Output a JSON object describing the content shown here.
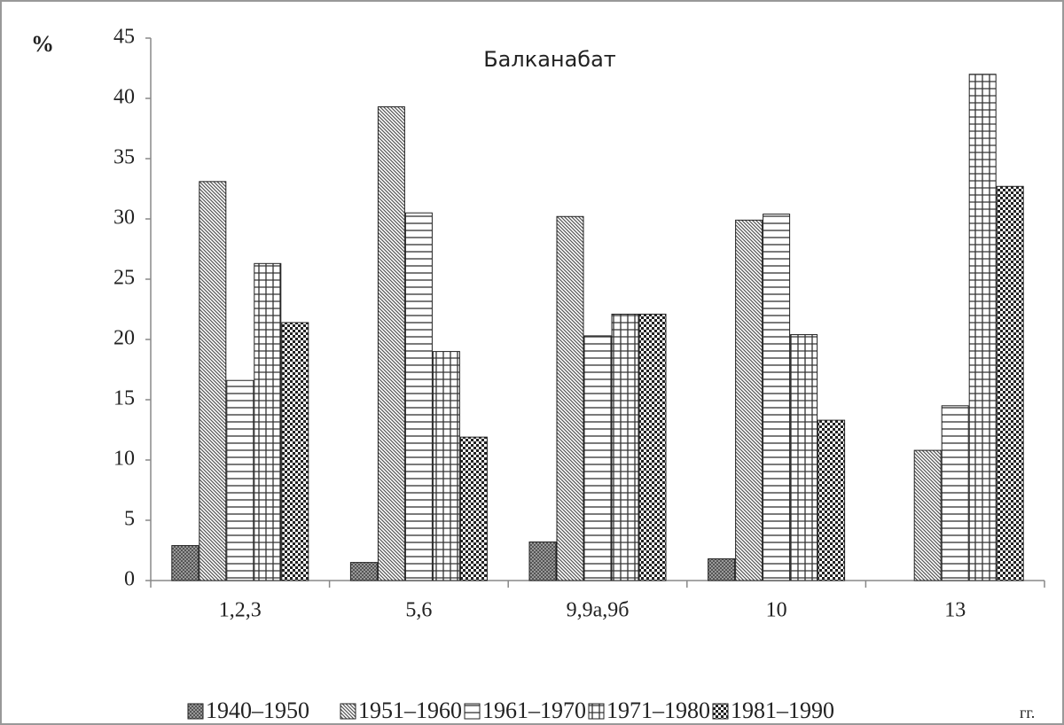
{
  "chart_data": {
    "type": "bar",
    "title": "Балканабат",
    "y_label": "%",
    "unit_note": "гг.",
    "categories": [
      "1,2,3",
      "5,6",
      "9,9а,9б",
      "10",
      "13"
    ],
    "series": [
      {
        "name": "1940–1950",
        "color": "#555555",
        "pattern": "dots",
        "values": [
          2.9,
          1.5,
          3.2,
          1.8,
          0
        ]
      },
      {
        "name": "1951–1960",
        "color": "#555555",
        "pattern": "diagonal",
        "values": [
          33.1,
          39.3,
          30.2,
          29.9,
          10.8
        ]
      },
      {
        "name": "1961–1970",
        "color": "#333333",
        "pattern": "horizontal",
        "values": [
          16.6,
          30.5,
          20.3,
          30.4,
          14.5
        ]
      },
      {
        "name": "1971–1980",
        "color": "#333333",
        "pattern": "grid",
        "values": [
          26.3,
          19.0,
          22.1,
          20.4,
          42.0
        ]
      },
      {
        "name": "1981–1990",
        "color": "#222222",
        "pattern": "checker",
        "values": [
          21.4,
          11.9,
          22.1,
          13.3,
          32.7
        ]
      }
    ],
    "ylim": [
      0,
      45
    ],
    "yticks": [
      0,
      5,
      10,
      15,
      20,
      25,
      30,
      35,
      40,
      45
    ],
    "grid": false
  }
}
